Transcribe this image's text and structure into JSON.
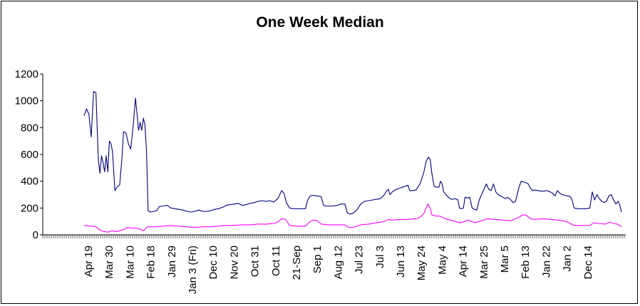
{
  "chart_data": {
    "type": "line",
    "title": "One Week Median",
    "xlabel": "",
    "ylabel": "",
    "ylim": [
      0,
      1200
    ],
    "yticks": [
      0,
      200,
      400,
      600,
      800,
      1000,
      1200
    ],
    "grid": false,
    "legend": "none",
    "x_tick_labels": [
      "Apr 19",
      "Mar 30",
      "Mar 10",
      "Feb 18",
      "Jan 29",
      "Jan 3 (Fri)",
      "Dec 10",
      "Nov 20",
      "Oct 31",
      "Oct 11",
      "21-Sep",
      "Sep 1",
      "Aug 12",
      "Jul 23",
      "Jul 3",
      "Jun 13",
      "May 24",
      "May 4",
      "Apr 14",
      "Mar 25",
      "Mar 5",
      "Feb 13",
      "Jan 22",
      "Jan 2",
      "Dec 14"
    ],
    "series": [
      {
        "color": "#000080",
        "points": [
          [
            0,
            890
          ],
          [
            0.3,
            940
          ],
          [
            0.6,
            900
          ],
          [
            0.9,
            730
          ],
          [
            1.2,
            1070
          ],
          [
            1.5,
            1060
          ],
          [
            1.8,
            560
          ],
          [
            2.0,
            460
          ],
          [
            2.2,
            590
          ],
          [
            2.4,
            540
          ],
          [
            2.6,
            470
          ],
          [
            2.8,
            590
          ],
          [
            3.0,
            470
          ],
          [
            3.2,
            700
          ],
          [
            3.4,
            680
          ],
          [
            3.6,
            620
          ],
          [
            3.9,
            330
          ],
          [
            4.2,
            360
          ],
          [
            4.5,
            370
          ],
          [
            4.8,
            580
          ],
          [
            5.0,
            770
          ],
          [
            5.3,
            760
          ],
          [
            5.6,
            680
          ],
          [
            5.9,
            640
          ],
          [
            6.2,
            800
          ],
          [
            6.5,
            1020
          ],
          [
            6.7,
            900
          ],
          [
            6.9,
            780
          ],
          [
            7.1,
            840
          ],
          [
            7.3,
            780
          ],
          [
            7.5,
            870
          ],
          [
            7.7,
            820
          ],
          [
            7.9,
            620
          ],
          [
            8.1,
            180
          ],
          [
            8.4,
            170
          ],
          [
            8.8,
            175
          ],
          [
            9.2,
            180
          ],
          [
            9.5,
            210
          ],
          [
            10,
            215
          ],
          [
            10.5,
            220
          ],
          [
            11,
            200
          ],
          [
            11.5,
            195
          ],
          [
            12,
            190
          ],
          [
            12.5,
            185
          ],
          [
            13,
            175
          ],
          [
            13.5,
            170
          ],
          [
            14,
            175
          ],
          [
            14.5,
            185
          ],
          [
            15,
            175
          ],
          [
            15.5,
            175
          ],
          [
            16,
            180
          ],
          [
            16.5,
            190
          ],
          [
            17,
            195
          ],
          [
            17.5,
            205
          ],
          [
            18,
            220
          ],
          [
            18.5,
            225
          ],
          [
            19,
            230
          ],
          [
            19.5,
            235
          ],
          [
            20,
            220
          ],
          [
            20.5,
            225
          ],
          [
            21,
            235
          ],
          [
            21.5,
            240
          ],
          [
            22,
            250
          ],
          [
            22.5,
            255
          ],
          [
            23,
            250
          ],
          [
            23.5,
            255
          ],
          [
            24,
            245
          ],
          [
            24.5,
            270
          ],
          [
            25,
            330
          ],
          [
            25.3,
            310
          ],
          [
            25.6,
            240
          ],
          [
            26,
            200
          ],
          [
            26.5,
            195
          ],
          [
            27,
            195
          ],
          [
            27.5,
            195
          ],
          [
            28,
            195
          ],
          [
            28.3,
            260
          ],
          [
            28.6,
            290
          ],
          [
            29,
            295
          ],
          [
            29.5,
            290
          ],
          [
            30,
            285
          ],
          [
            30.3,
            220
          ],
          [
            30.6,
            215
          ],
          [
            31,
            215
          ],
          [
            31.5,
            215
          ],
          [
            32,
            220
          ],
          [
            32.5,
            230
          ],
          [
            33,
            230
          ],
          [
            33.3,
            165
          ],
          [
            33.6,
            155
          ],
          [
            34,
            160
          ],
          [
            34.5,
            185
          ],
          [
            35,
            230
          ],
          [
            35.5,
            250
          ],
          [
            36,
            255
          ],
          [
            36.5,
            260
          ],
          [
            37,
            265
          ],
          [
            37.5,
            270
          ],
          [
            38,
            300
          ],
          [
            38.3,
            330
          ],
          [
            38.5,
            340
          ],
          [
            38.7,
            300
          ],
          [
            39,
            320
          ],
          [
            39.5,
            340
          ],
          [
            40,
            350
          ],
          [
            40.5,
            360
          ],
          [
            41,
            370
          ],
          [
            41.2,
            330
          ],
          [
            41.5,
            330
          ],
          [
            42,
            335
          ],
          [
            42.5,
            380
          ],
          [
            42.8,
            430
          ],
          [
            43,
            470
          ],
          [
            43.3,
            550
          ],
          [
            43.6,
            580
          ],
          [
            43.8,
            560
          ],
          [
            44,
            460
          ],
          [
            44.3,
            360
          ],
          [
            44.6,
            355
          ],
          [
            44.9,
            355
          ],
          [
            45.1,
            400
          ],
          [
            45.3,
            380
          ],
          [
            45.5,
            320
          ],
          [
            45.8,
            300
          ],
          [
            46,
            285
          ],
          [
            46.3,
            270
          ],
          [
            46.6,
            265
          ],
          [
            47,
            270
          ],
          [
            47.3,
            260
          ],
          [
            47.5,
            200
          ],
          [
            47.8,
            195
          ],
          [
            48,
            200
          ],
          [
            48.2,
            280
          ],
          [
            48.5,
            275
          ],
          [
            48.8,
            280
          ],
          [
            49.1,
            200
          ],
          [
            49.4,
            190
          ],
          [
            49.7,
            185
          ],
          [
            50,
            260
          ],
          [
            50.3,
            300
          ],
          [
            50.6,
            340
          ],
          [
            50.9,
            380
          ],
          [
            51.2,
            340
          ],
          [
            51.5,
            330
          ],
          [
            51.8,
            380
          ],
          [
            52.1,
            320
          ],
          [
            52.4,
            300
          ],
          [
            52.7,
            290
          ],
          [
            53,
            280
          ],
          [
            53.3,
            270
          ],
          [
            53.6,
            280
          ],
          [
            54,
            260
          ],
          [
            54.3,
            240
          ],
          [
            54.6,
            250
          ],
          [
            55,
            350
          ],
          [
            55.3,
            400
          ],
          [
            55.6,
            395
          ],
          [
            55.9,
            390
          ],
          [
            56.2,
            380
          ],
          [
            56.5,
            345
          ],
          [
            56.8,
            330
          ],
          [
            57,
            335
          ],
          [
            57.5,
            330
          ],
          [
            58,
            325
          ],
          [
            58.5,
            330
          ],
          [
            59,
            320
          ],
          [
            59.3,
            310
          ],
          [
            59.6,
            290
          ],
          [
            59.9,
            330
          ],
          [
            60.2,
            310
          ],
          [
            60.5,
            300
          ],
          [
            60.8,
            295
          ],
          [
            61.1,
            290
          ],
          [
            61.4,
            290
          ],
          [
            61.7,
            270
          ],
          [
            62,
            200
          ],
          [
            62.5,
            195
          ],
          [
            63,
            195
          ],
          [
            63.5,
            195
          ],
          [
            64,
            200
          ],
          [
            64.3,
            320
          ],
          [
            64.6,
            260
          ],
          [
            64.9,
            300
          ],
          [
            65.2,
            270
          ],
          [
            65.5,
            250
          ],
          [
            65.8,
            240
          ],
          [
            66.1,
            250
          ],
          [
            66.4,
            290
          ],
          [
            66.7,
            300
          ],
          [
            67,
            260
          ],
          [
            67.3,
            230
          ],
          [
            67.6,
            250
          ],
          [
            67.8,
            220
          ],
          [
            68,
            170
          ]
        ]
      },
      {
        "color": "#ff00ff",
        "points": [
          [
            0,
            70
          ],
          [
            1,
            65
          ],
          [
            1.5,
            60
          ],
          [
            2,
            35
          ],
          [
            2.5,
            25
          ],
          [
            3,
            20
          ],
          [
            3.5,
            30
          ],
          [
            4,
            25
          ],
          [
            4.5,
            30
          ],
          [
            5,
            40
          ],
          [
            5.5,
            55
          ],
          [
            6,
            50
          ],
          [
            6.5,
            50
          ],
          [
            7,
            45
          ],
          [
            7.5,
            30
          ],
          [
            8,
            60
          ],
          [
            9,
            60
          ],
          [
            10,
            65
          ],
          [
            11,
            70
          ],
          [
            12,
            65
          ],
          [
            13,
            60
          ],
          [
            14,
            55
          ],
          [
            15,
            60
          ],
          [
            16,
            60
          ],
          [
            17,
            65
          ],
          [
            18,
            70
          ],
          [
            19,
            70
          ],
          [
            20,
            75
          ],
          [
            21,
            75
          ],
          [
            22,
            80
          ],
          [
            23,
            80
          ],
          [
            24,
            85
          ],
          [
            24.5,
            95
          ],
          [
            25,
            120
          ],
          [
            25.5,
            115
          ],
          [
            26,
            70
          ],
          [
            27,
            65
          ],
          [
            28,
            65
          ],
          [
            28.5,
            95
          ],
          [
            29,
            110
          ],
          [
            29.5,
            105
          ],
          [
            30,
            80
          ],
          [
            31,
            75
          ],
          [
            32,
            75
          ],
          [
            33,
            75
          ],
          [
            33.5,
            55
          ],
          [
            34,
            55
          ],
          [
            35,
            75
          ],
          [
            36,
            80
          ],
          [
            37,
            90
          ],
          [
            38,
            100
          ],
          [
            38.5,
            115
          ],
          [
            39,
            110
          ],
          [
            40,
            115
          ],
          [
            41,
            115
          ],
          [
            42,
            120
          ],
          [
            42.5,
            130
          ],
          [
            43,
            160
          ],
          [
            43.5,
            230
          ],
          [
            43.8,
            200
          ],
          [
            44,
            150
          ],
          [
            44.5,
            140
          ],
          [
            45,
            140
          ],
          [
            45.5,
            125
          ],
          [
            46,
            115
          ],
          [
            47,
            100
          ],
          [
            47.5,
            90
          ],
          [
            48,
            95
          ],
          [
            48.5,
            110
          ],
          [
            49,
            100
          ],
          [
            49.5,
            90
          ],
          [
            50,
            100
          ],
          [
            51,
            120
          ],
          [
            52,
            115
          ],
          [
            53,
            110
          ],
          [
            54,
            105
          ],
          [
            55,
            130
          ],
          [
            55.5,
            150
          ],
          [
            56,
            145
          ],
          [
            56.5,
            120
          ],
          [
            57,
            115
          ],
          [
            58,
            120
          ],
          [
            59,
            115
          ],
          [
            60,
            110
          ],
          [
            61,
            100
          ],
          [
            62,
            70
          ],
          [
            63,
            70
          ],
          [
            64,
            70
          ],
          [
            64.5,
            90
          ],
          [
            65,
            85
          ],
          [
            66,
            80
          ],
          [
            66.5,
            95
          ],
          [
            67,
            85
          ],
          [
            67.5,
            80
          ],
          [
            68,
            60
          ]
        ]
      }
    ]
  }
}
